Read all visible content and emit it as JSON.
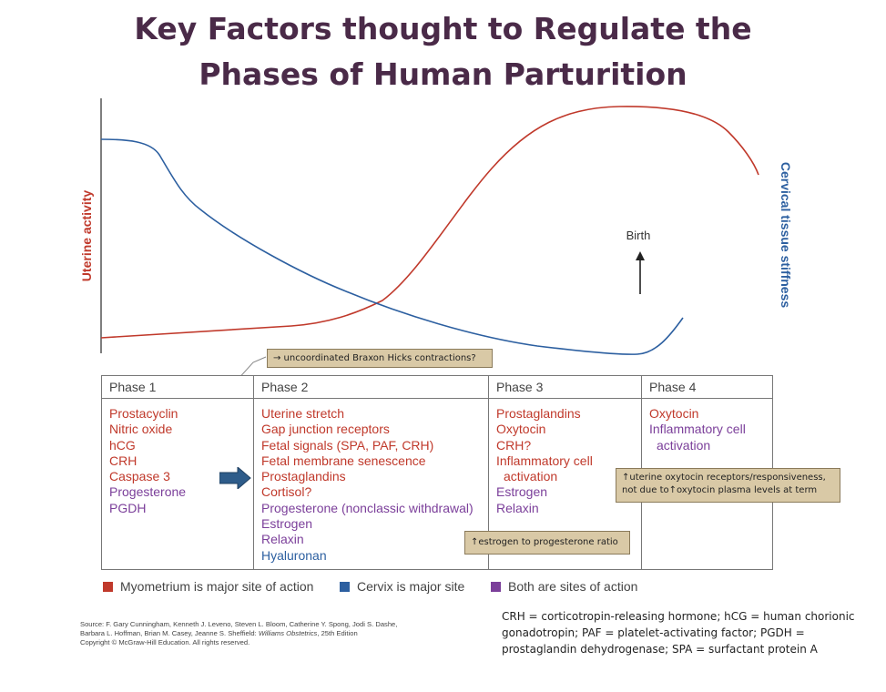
{
  "title": {
    "line1": "Key Factors thought to Regulate the",
    "line2": "Phases of Human Parturition"
  },
  "chart": {
    "left_axis_label": "Uterine activity",
    "right_axis_label": "Cervical tissue stiffness",
    "birth_label": "Birth",
    "colors": {
      "uterine": "#c0392b",
      "cervical": "#2c5fa0",
      "axis": "#555555"
    }
  },
  "notes": {
    "braxton_hicks": "→ uncoordinated Braxon Hicks contractions?",
    "estrogen_ratio": "↑estrogen to progesterone ratio",
    "oxytocin_line1": "↑uterine oxytocin receptors/responsiveness,",
    "oxytocin_line2": "not due  to↑oxytocin plasma levels at term"
  },
  "phases": [
    {
      "name": "Phase 1",
      "items": [
        {
          "text": "Prostacyclin",
          "color": "red"
        },
        {
          "text": "Nitric oxide",
          "color": "red"
        },
        {
          "text": "hCG",
          "color": "red"
        },
        {
          "text": "CRH",
          "color": "red"
        },
        {
          "text": "Caspase 3",
          "color": "red"
        },
        {
          "text": "Progesterone",
          "color": "purple"
        },
        {
          "text": "PGDH",
          "color": "purple"
        }
      ]
    },
    {
      "name": "Phase 2",
      "items": [
        {
          "text": "Uterine stretch",
          "color": "red"
        },
        {
          "text": "Gap junction receptors",
          "color": "red"
        },
        {
          "text": "Fetal signals (SPA, PAF, CRH)",
          "color": "red"
        },
        {
          "text": "Fetal membrane senescence",
          "color": "red"
        },
        {
          "text": "Prostaglandins",
          "color": "red"
        },
        {
          "text": "Cortisol?",
          "color": "red"
        },
        {
          "text": "Progesterone (nonclassic withdrawal)",
          "color": "purple"
        },
        {
          "text": "Estrogen",
          "color": "purple"
        },
        {
          "text": "Relaxin",
          "color": "purple"
        },
        {
          "text": "Hyaluronan",
          "color": "blue"
        }
      ]
    },
    {
      "name": "Phase 3",
      "items": [
        {
          "text": "Prostaglandins",
          "color": "red"
        },
        {
          "text": "Oxytocin",
          "color": "red"
        },
        {
          "text": "CRH?",
          "color": "red"
        },
        {
          "text": "Inflammatory cell",
          "color": "red"
        },
        {
          "text": "activation",
          "color": "red",
          "indent": true
        },
        {
          "text": "Estrogen",
          "color": "purple"
        },
        {
          "text": "Relaxin",
          "color": "purple"
        }
      ]
    },
    {
      "name": "Phase 4",
      "items": [
        {
          "text": "Oxytocin",
          "color": "red"
        },
        {
          "text": "Inflammatory cell",
          "color": "purple"
        },
        {
          "text": "activation",
          "color": "purple",
          "indent": true
        }
      ]
    }
  ],
  "legend": [
    {
      "label": "Myometrium is major site of action",
      "color": "#c0392b"
    },
    {
      "label": "Cervix is major site",
      "color": "#2c5fa0"
    },
    {
      "label": "Both are sites of action",
      "color": "#7b3f9a"
    }
  ],
  "source": {
    "line1": "Source: F. Gary Cunningham, Kenneth J. Leveno, Steven L. Bloom, Catherine Y. Spong, Jodi S. Dashe,",
    "line2_pre": "Barbara L. Hoffman, Brian M. Casey, Jeanne S. Sheffield: ",
    "line2_book": "Williams Obstetrics",
    "line2_post": ", 25th Edition",
    "line3": "Copyright © McGraw-Hill Education.  All rights reserved."
  },
  "abbreviations": "CRH = corticotropin-releasing hormone; hCG = human chorionic gonadotropin; PAF = platelet-activating factor; PGDH = prostaglandin dehydrogenase; SPA = surfactant protein A"
}
